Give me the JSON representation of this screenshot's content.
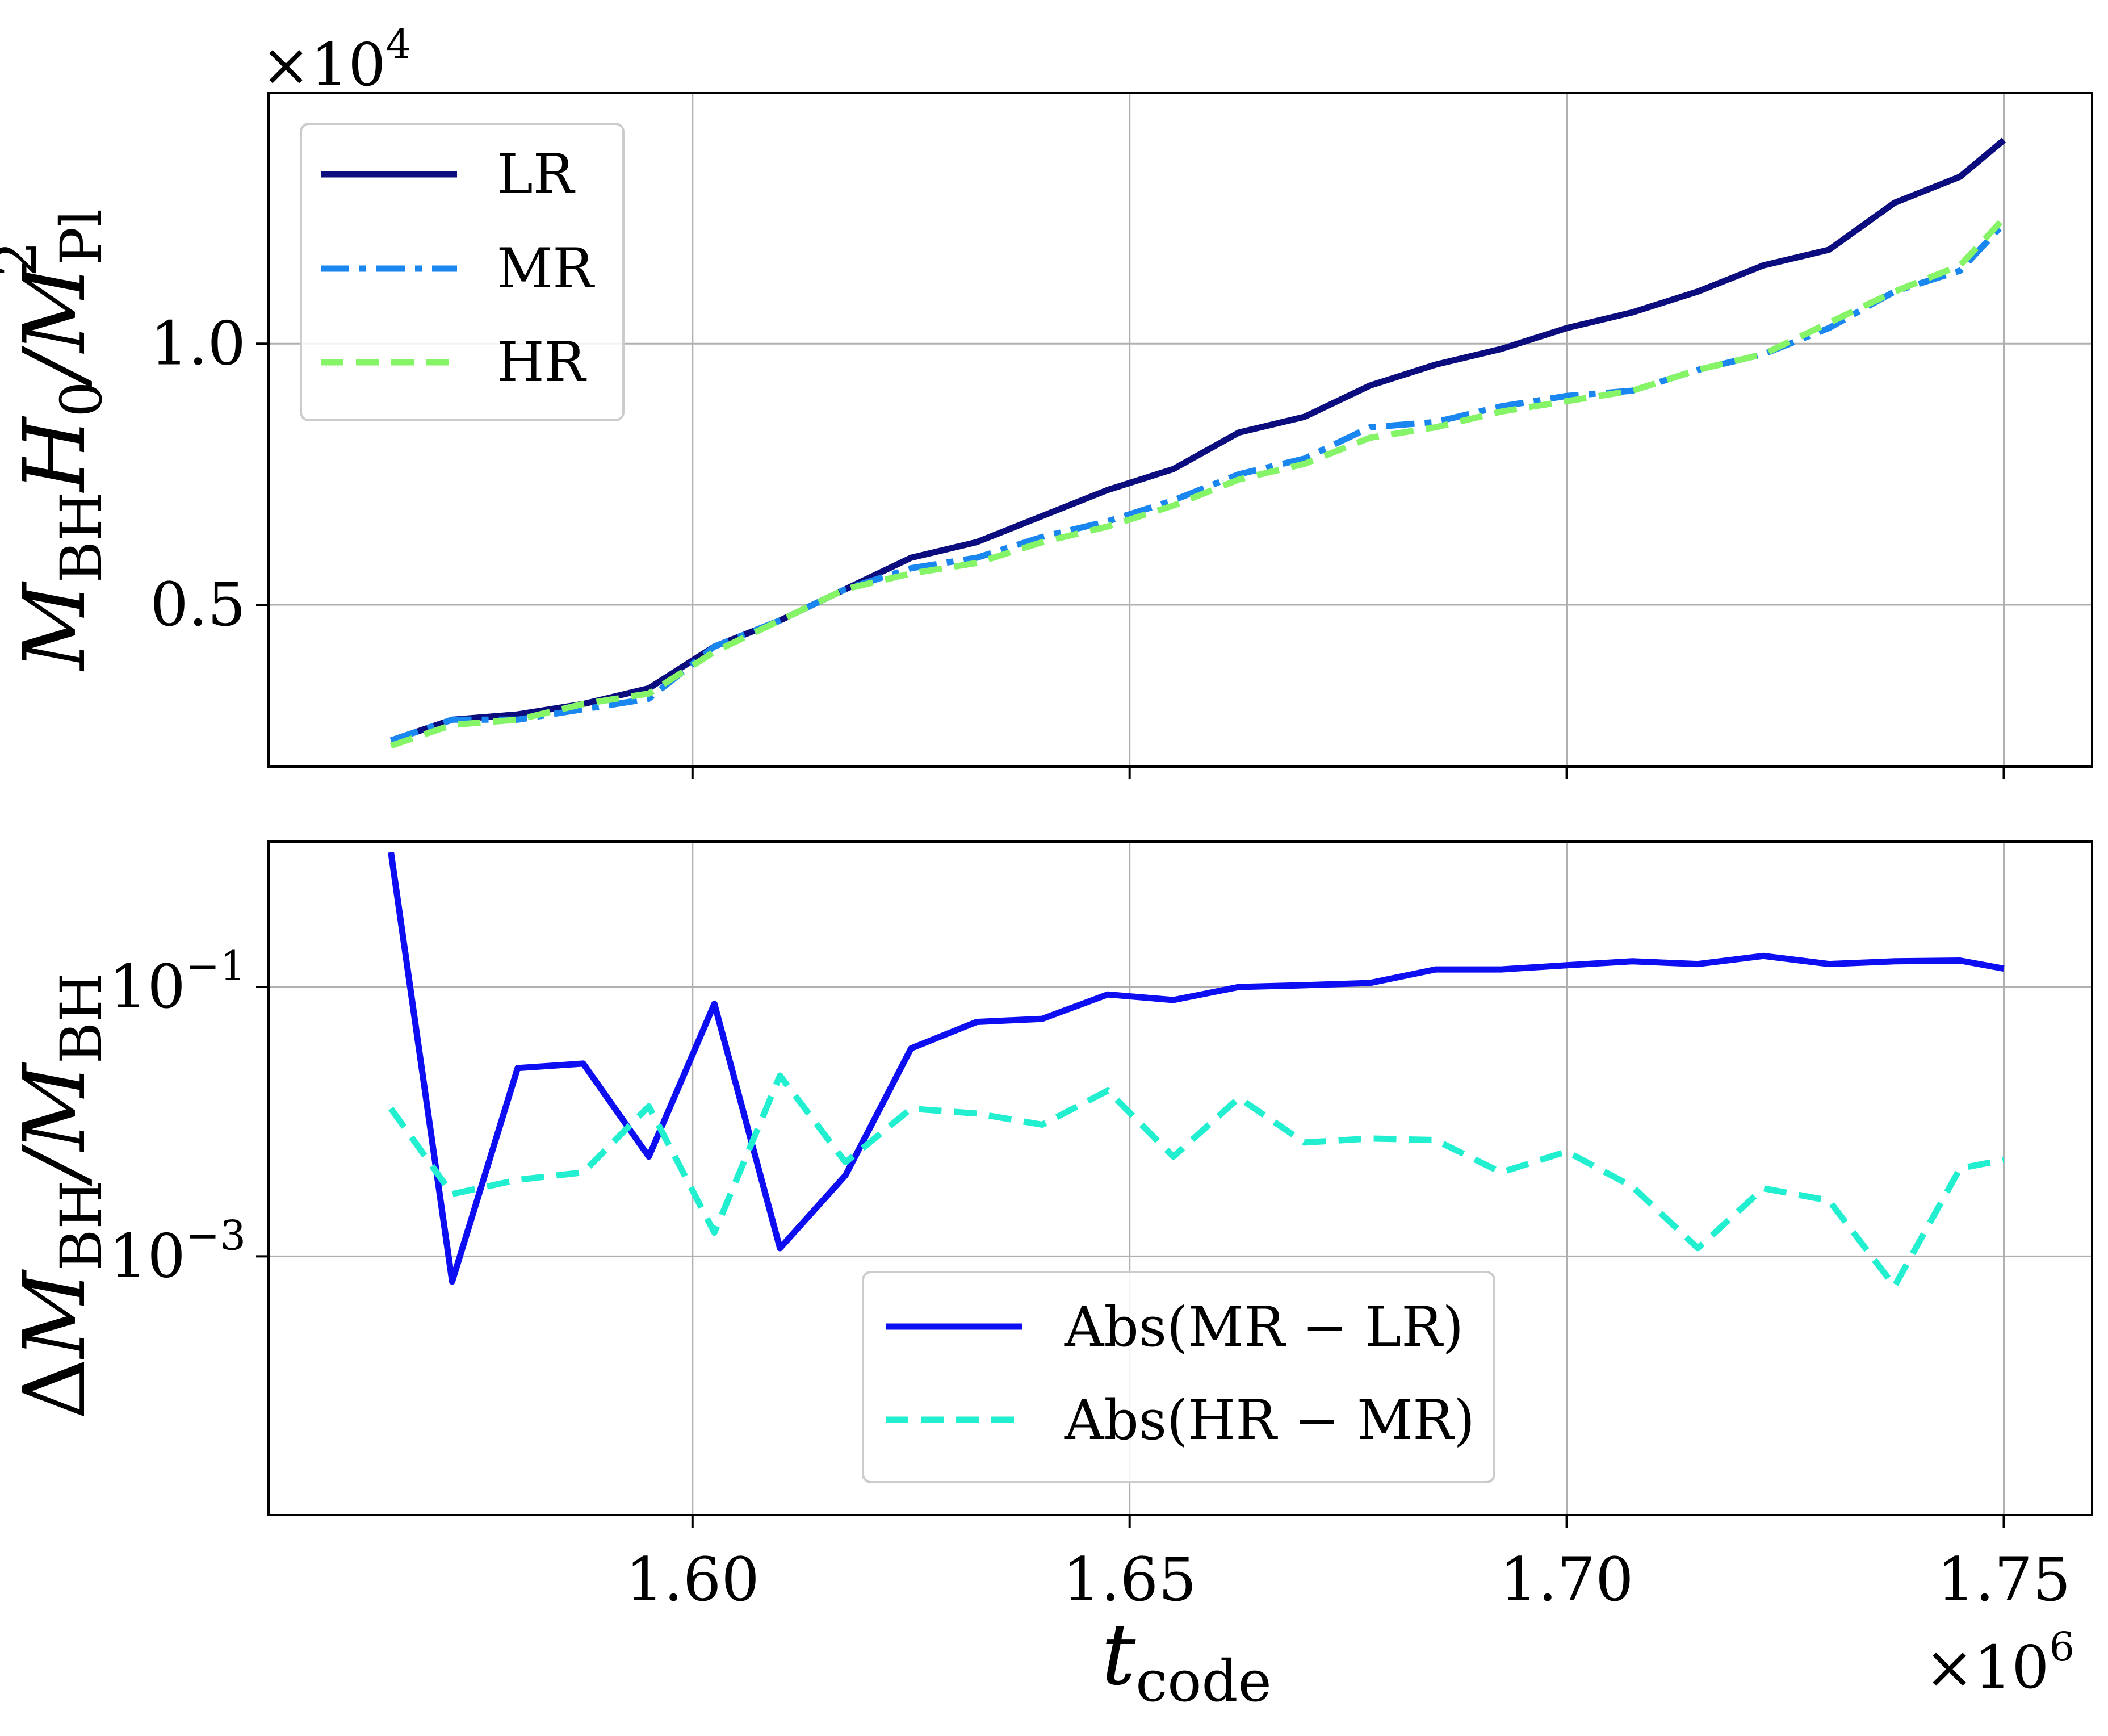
{
  "figure": {
    "xlabel": {
      "main": "t",
      "sub": "code"
    },
    "x_offset": {
      "base": "×10",
      "exp": "6"
    },
    "x_ticks": [
      "1.60",
      "1.65",
      "1.70",
      "1.75"
    ]
  },
  "chart_data": [
    {
      "type": "line",
      "panel": "top",
      "ylabel": {
        "main": "M",
        "sub1": "BH",
        "mid": "H",
        "sub2": "0",
        "tail": "/M",
        "sub3": "Pl",
        "sup": "2"
      },
      "y_offset": {
        "base": "×10",
        "exp": "4"
      },
      "y_ticks": [
        "0.5",
        "1.0"
      ],
      "xlim": [
        1.5515,
        1.7601
      ],
      "ylim": [
        0.19,
        1.48
      ],
      "grid": true,
      "legend": {
        "position": "top-left",
        "entries": [
          "LR",
          "MR",
          "HR"
        ]
      },
      "x": [
        1.5655,
        1.5725,
        1.58,
        1.5875,
        1.595,
        1.6025,
        1.61,
        1.6175,
        1.625,
        1.6325,
        1.64,
        1.6475,
        1.655,
        1.6625,
        1.67,
        1.6775,
        1.685,
        1.6925,
        1.7,
        1.7075,
        1.715,
        1.7225,
        1.73,
        1.7375,
        1.745,
        1.75
      ],
      "series": [
        {
          "name": "LR",
          "color": "#0b0c7e",
          "style": "solid",
          "values": [
            0.24,
            0.28,
            0.29,
            0.31,
            0.34,
            0.42,
            0.47,
            0.53,
            0.59,
            0.62,
            0.67,
            0.72,
            0.76,
            0.83,
            0.86,
            0.92,
            0.96,
            0.99,
            1.03,
            1.06,
            1.1,
            1.15,
            1.18,
            1.27,
            1.32,
            1.39
          ]
        },
        {
          "name": "MR",
          "color": "#1a86f0",
          "style": "dashdot",
          "values": [
            0.24,
            0.28,
            0.28,
            0.3,
            0.32,
            0.42,
            0.47,
            0.53,
            0.57,
            0.59,
            0.63,
            0.66,
            0.7,
            0.75,
            0.78,
            0.84,
            0.85,
            0.88,
            0.9,
            0.91,
            0.95,
            0.98,
            1.03,
            1.1,
            1.14,
            1.23
          ]
        },
        {
          "name": "HR",
          "color": "#85f466",
          "style": "dashed",
          "values": [
            0.23,
            0.27,
            0.28,
            0.31,
            0.33,
            0.41,
            0.47,
            0.53,
            0.56,
            0.58,
            0.62,
            0.65,
            0.69,
            0.74,
            0.77,
            0.82,
            0.84,
            0.87,
            0.89,
            0.91,
            0.95,
            0.98,
            1.04,
            1.1,
            1.15,
            1.24
          ]
        }
      ]
    },
    {
      "type": "line",
      "panel": "bottom",
      "ylabel": {
        "pre": "Δ",
        "main": "M",
        "sub1": "BH",
        "tail": "/M",
        "sub2": "BH"
      },
      "y_ticks": [
        {
          "base": "10",
          "exp": "−3",
          "value": 0.001
        },
        {
          "base": "10",
          "exp": "−1",
          "value": 0.1
        }
      ],
      "y_scale": "log",
      "xlim": [
        1.5515,
        1.7601
      ],
      "ylim": [
        1.2e-05,
        1.2
      ],
      "grid": true,
      "legend": {
        "position": "bottom-center",
        "entries": [
          "Abs(MR − LR)",
          "Abs(HR − MR)"
        ]
      },
      "x": [
        1.5655,
        1.5725,
        1.58,
        1.5875,
        1.595,
        1.6025,
        1.61,
        1.6175,
        1.625,
        1.6325,
        1.64,
        1.6475,
        1.655,
        1.6625,
        1.67,
        1.6775,
        1.685,
        1.6925,
        1.7,
        1.7075,
        1.715,
        1.7225,
        1.73,
        1.7375,
        1.745,
        1.75
      ],
      "series": [
        {
          "name": "Abs(MR − LR)",
          "color": "#0d0ef2",
          "style": "solid",
          "values": [
            1.0,
            0.00065,
            0.025,
            0.027,
            0.0055,
            0.075,
            0.00115,
            0.004,
            0.035,
            0.055,
            0.058,
            0.088,
            0.08,
            0.1,
            0.103,
            0.107,
            0.135,
            0.135,
            0.145,
            0.155,
            0.148,
            0.17,
            0.148,
            0.155,
            0.157,
            0.137
          ]
        },
        {
          "name": "Abs(HR − MR)",
          "color": "#22efcf",
          "style": "dashed",
          "values": [
            0.0125,
            0.0029,
            0.0037,
            0.0042,
            0.013,
            0.0015,
            0.022,
            0.005,
            0.0125,
            0.0115,
            0.0095,
            0.017,
            0.0055,
            0.015,
            0.007,
            0.0075,
            0.0073,
            0.0042,
            0.006,
            0.0033,
            0.00115,
            0.0032,
            0.0026,
            0.0006,
            0.0045,
            0.0052
          ]
        }
      ]
    }
  ]
}
